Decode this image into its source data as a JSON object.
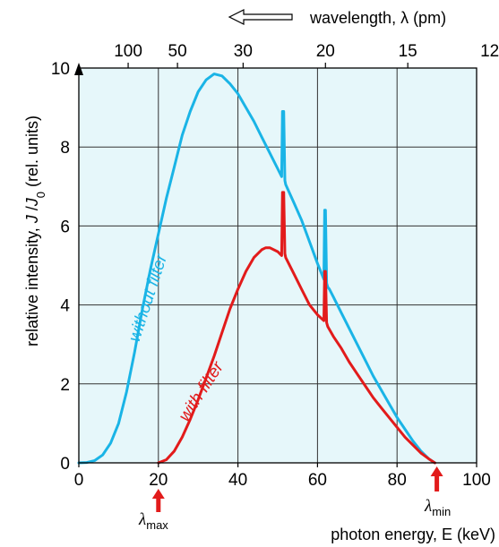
{
  "chart_data": {
    "type": "line",
    "xlabel": "photon energy, E (keV)",
    "ylabel_parts": [
      "relative intensity, ",
      "J",
      " /",
      "J",
      "0",
      " (rel. units)"
    ],
    "top_axis_label": "wavelength, λ (pm)",
    "xlim": [
      0,
      100
    ],
    "ylim": [
      0,
      10
    ],
    "x_ticks": [
      0,
      20,
      40,
      60,
      80,
      100
    ],
    "y_ticks": [
      0,
      2,
      4,
      6,
      8,
      10
    ],
    "top_ticks": [
      {
        "label": "100",
        "energy": 12.4
      },
      {
        "label": "50",
        "energy": 24.8
      },
      {
        "label": "30",
        "energy": 41.3
      },
      {
        "label": "20",
        "energy": 62.0
      },
      {
        "label": "15",
        "energy": 82.7
      },
      {
        "label": "12",
        "energy": 103.3
      }
    ],
    "grid": true,
    "background_color": "#e6f7fa",
    "series": [
      {
        "name": "without filter",
        "color": "#1ab4e6",
        "x": [
          0,
          2,
          4,
          6,
          8,
          10,
          12,
          14,
          16,
          18,
          20,
          22,
          24,
          26,
          28,
          30,
          32,
          34,
          36,
          38,
          40,
          42,
          44,
          46,
          48,
          50,
          51.0,
          51.2,
          51.5,
          51.8,
          52.0,
          54,
          56,
          58,
          60,
          61.6,
          61.8,
          62.0,
          62.3,
          62.6,
          63,
          64,
          66,
          68,
          70,
          72,
          74,
          76,
          78,
          80,
          82,
          84,
          86,
          88,
          89.5
        ],
        "y": [
          0,
          0.01,
          0.06,
          0.2,
          0.5,
          1.0,
          1.8,
          2.8,
          3.9,
          4.9,
          5.8,
          6.7,
          7.5,
          8.3,
          8.9,
          9.4,
          9.7,
          9.85,
          9.8,
          9.6,
          9.35,
          9.0,
          8.65,
          8.25,
          7.85,
          7.45,
          7.25,
          8.9,
          8.9,
          7.15,
          7.05,
          6.6,
          6.15,
          5.6,
          5.05,
          4.65,
          6.4,
          6.4,
          4.55,
          4.45,
          4.4,
          4.2,
          3.8,
          3.4,
          3.0,
          2.6,
          2.2,
          1.85,
          1.5,
          1.15,
          0.85,
          0.55,
          0.3,
          0.1,
          0
        ]
      },
      {
        "name": "with filter",
        "color": "#e21b1b",
        "x": [
          20,
          22,
          24,
          26,
          28,
          30,
          32,
          34,
          36,
          38,
          40,
          42,
          44,
          46,
          47,
          48,
          50,
          51.0,
          51.2,
          51.5,
          51.8,
          52.0,
          54,
          56,
          58,
          60,
          61.6,
          61.8,
          62.0,
          62.3,
          62.6,
          64,
          66,
          68,
          70,
          72,
          74,
          76,
          78,
          80,
          82,
          84,
          86,
          88,
          89.5
        ],
        "y": [
          0,
          0.08,
          0.3,
          0.65,
          1.1,
          1.6,
          2.15,
          2.7,
          3.3,
          3.9,
          4.4,
          4.85,
          5.2,
          5.4,
          5.45,
          5.45,
          5.35,
          5.25,
          6.85,
          6.85,
          5.3,
          5.2,
          4.8,
          4.4,
          4.0,
          3.75,
          3.6,
          4.85,
          4.85,
          3.55,
          3.45,
          3.2,
          2.9,
          2.55,
          2.25,
          1.95,
          1.65,
          1.4,
          1.15,
          0.9,
          0.65,
          0.45,
          0.25,
          0.1,
          0
        ]
      }
    ],
    "annotations": {
      "lambda_max": {
        "symbol": "λ",
        "subscript": "max",
        "energy": 20
      },
      "lambda_min": {
        "symbol": "λ",
        "subscript": "min",
        "energy": 90
      }
    },
    "arrow_color": "#e21b1b"
  }
}
